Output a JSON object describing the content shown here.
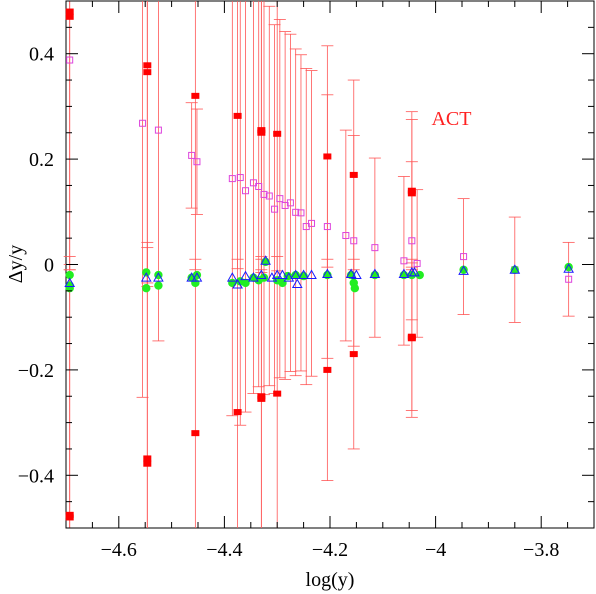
{
  "chart_data": {
    "type": "scatter",
    "title": "",
    "xlabel": "log(y)",
    "ylabel": "Δy/y",
    "xlim": [
      -4.7,
      -3.7
    ],
    "ylim": [
      -0.5,
      0.5
    ],
    "xticks": [
      -4.6,
      -4.4,
      -4.2,
      -4.0,
      -3.8
    ],
    "xtick_labels": [
      "−4.6",
      "−4.4",
      "−4.2",
      "−4",
      "−3.8"
    ],
    "yticks": [
      -0.4,
      -0.2,
      0.0,
      0.2,
      0.4
    ],
    "ytick_labels": [
      "−0.4",
      "−0.2",
      "0",
      "0.2",
      "0.4"
    ],
    "grid": false,
    "annotation": {
      "text": "ACT",
      "x": -3.97,
      "y": 0.265,
      "color": "#ff2020"
    },
    "colors": {
      "red": "#ff0000",
      "errorbar": "#ff5555",
      "magenta": "#dd44dd",
      "green": "#22ee22",
      "blue": "#1a1aff"
    },
    "red_errorbars": {
      "marker": "filled-square",
      "points": [
        {
          "x": -4.693,
          "y": 0.48,
          "err": 0.49
        },
        {
          "x": -4.693,
          "y": 0.47,
          "err": 0.48
        },
        {
          "x": -4.693,
          "y": -0.475,
          "err": 0.49
        },
        {
          "x": -4.693,
          "y": -0.48,
          "err": 0.48
        },
        {
          "x": -4.546,
          "y": 0.378,
          "err": 0.42
        },
        {
          "x": -4.546,
          "y": 0.365,
          "err": 0.4
        },
        {
          "x": -4.546,
          "y": -0.368,
          "err": 0.4
        },
        {
          "x": -4.546,
          "y": -0.378,
          "err": 0.42
        },
        {
          "x": -4.455,
          "y": 0.32,
          "err": 0.33
        },
        {
          "x": -4.455,
          "y": -0.32,
          "err": 0.33
        },
        {
          "x": -4.375,
          "y": 0.282,
          "err": 0.29
        },
        {
          "x": -4.375,
          "y": -0.28,
          "err": 0.29
        },
        {
          "x": -4.33,
          "y": 0.255,
          "err": 0.27
        },
        {
          "x": -4.33,
          "y": 0.25,
          "err": 0.26
        },
        {
          "x": -4.33,
          "y": -0.25,
          "err": 0.26
        },
        {
          "x": -4.33,
          "y": -0.255,
          "err": 0.27
        },
        {
          "x": -4.3,
          "y": 0.248,
          "err": 0.26
        },
        {
          "x": -4.3,
          "y": -0.245,
          "err": 0.26
        },
        {
          "x": -4.205,
          "y": 0.205,
          "err": 0.21
        },
        {
          "x": -4.205,
          "y": -0.2,
          "err": 0.21
        },
        {
          "x": -4.155,
          "y": 0.17,
          "err": 0.18
        },
        {
          "x": -4.155,
          "y": -0.17,
          "err": 0.18
        },
        {
          "x": -4.045,
          "y": 0.14,
          "err": 0.15
        },
        {
          "x": -4.045,
          "y": 0.135,
          "err": 0.14
        },
        {
          "x": -4.045,
          "y": -0.137,
          "err": 0.14
        },
        {
          "x": -4.045,
          "y": -0.14,
          "err": 0.15
        }
      ]
    },
    "magenta_errorbars": {
      "marker": "open-square",
      "points": [
        {
          "x": -4.693,
          "y": 0.388,
          "err": 0.0
        },
        {
          "x": -4.555,
          "y": 0.268,
          "err": 0.52
        },
        {
          "x": -4.525,
          "y": 0.255,
          "err": 0.4
        },
        {
          "x": -4.462,
          "y": 0.207,
          "err": 0.1
        },
        {
          "x": -4.452,
          "y": 0.195,
          "err": 0.1
        },
        {
          "x": -4.385,
          "y": 0.163,
          "err": 0.45
        },
        {
          "x": -4.37,
          "y": 0.165,
          "err": 0.47
        },
        {
          "x": -4.36,
          "y": 0.14,
          "err": 0.42
        },
        {
          "x": -4.345,
          "y": 0.155,
          "err": 0.4
        },
        {
          "x": -4.335,
          "y": 0.148,
          "err": 0.38
        },
        {
          "x": -4.325,
          "y": 0.133,
          "err": 0.38
        },
        {
          "x": -4.315,
          "y": 0.13,
          "err": 0.36
        },
        {
          "x": -4.305,
          "y": 0.105,
          "err": 0.35
        },
        {
          "x": -4.295,
          "y": 0.125,
          "err": 0.34
        },
        {
          "x": -4.285,
          "y": 0.112,
          "err": 0.33
        },
        {
          "x": -4.275,
          "y": 0.117,
          "err": 0.32
        },
        {
          "x": -4.265,
          "y": 0.099,
          "err": 0.31
        },
        {
          "x": -4.255,
          "y": 0.098,
          "err": 0.3
        },
        {
          "x": -4.245,
          "y": 0.072,
          "err": 0.3
        },
        {
          "x": -4.235,
          "y": 0.078,
          "err": 0.29
        },
        {
          "x": -4.205,
          "y": 0.072,
          "err": 0.25
        },
        {
          "x": -4.17,
          "y": 0.055,
          "err": 0.2
        },
        {
          "x": -4.155,
          "y": 0.045,
          "err": 0.2
        },
        {
          "x": -4.115,
          "y": 0.032,
          "err": 0.17
        },
        {
          "x": -4.06,
          "y": 0.007,
          "err": 0.16
        },
        {
          "x": -4.045,
          "y": 0.045,
          "err": 0.15
        },
        {
          "x": -4.035,
          "y": 0.002,
          "err": 0.14
        },
        {
          "x": -3.947,
          "y": 0.015,
          "err": 0.11
        },
        {
          "x": -3.85,
          "y": -0.01,
          "err": 0.1
        },
        {
          "x": -3.748,
          "y": -0.028,
          "err": 0.07
        }
      ]
    },
    "green_points": {
      "marker": "filled-circle",
      "points": [
        {
          "x": -4.693,
          "y": -0.02
        },
        {
          "x": -4.693,
          "y": -0.04
        },
        {
          "x": -4.693,
          "y": -0.045
        },
        {
          "x": -4.548,
          "y": -0.015
        },
        {
          "x": -4.548,
          "y": -0.045
        },
        {
          "x": -4.525,
          "y": -0.02
        },
        {
          "x": -4.525,
          "y": -0.04
        },
        {
          "x": -4.462,
          "y": -0.025
        },
        {
          "x": -4.455,
          "y": -0.035
        },
        {
          "x": -4.452,
          "y": -0.02
        },
        {
          "x": -4.385,
          "y": -0.035
        },
        {
          "x": -4.37,
          "y": -0.032
        },
        {
          "x": -4.36,
          "y": -0.035
        },
        {
          "x": -4.345,
          "y": -0.025
        },
        {
          "x": -4.335,
          "y": -0.03
        },
        {
          "x": -4.325,
          "y": -0.025
        },
        {
          "x": -4.322,
          "y": 0.005
        },
        {
          "x": -4.3,
          "y": -0.03
        },
        {
          "x": -4.29,
          "y": -0.035
        },
        {
          "x": -4.28,
          "y": -0.022
        },
        {
          "x": -4.265,
          "y": -0.02
        },
        {
          "x": -4.25,
          "y": -0.022
        },
        {
          "x": -4.205,
          "y": -0.02
        },
        {
          "x": -4.16,
          "y": -0.02
        },
        {
          "x": -4.155,
          "y": -0.035
        },
        {
          "x": -4.153,
          "y": -0.045
        },
        {
          "x": -4.115,
          "y": -0.02
        },
        {
          "x": -4.06,
          "y": -0.02
        },
        {
          "x": -4.045,
          "y": -0.02
        },
        {
          "x": -4.03,
          "y": -0.02
        },
        {
          "x": -3.947,
          "y": -0.01
        },
        {
          "x": -3.85,
          "y": -0.01
        },
        {
          "x": -3.748,
          "y": -0.005
        }
      ]
    },
    "blue_points": {
      "marker": "open-triangle",
      "points": [
        {
          "x": -4.693,
          "y": -0.035
        },
        {
          "x": -4.548,
          "y": -0.025
        },
        {
          "x": -4.525,
          "y": -0.025
        },
        {
          "x": -4.462,
          "y": -0.025
        },
        {
          "x": -4.452,
          "y": -0.025
        },
        {
          "x": -4.385,
          "y": -0.025
        },
        {
          "x": -4.375,
          "y": -0.038
        },
        {
          "x": -4.36,
          "y": -0.022
        },
        {
          "x": -4.345,
          "y": -0.025
        },
        {
          "x": -4.33,
          "y": -0.02
        },
        {
          "x": -4.322,
          "y": 0.007
        },
        {
          "x": -4.31,
          "y": -0.025
        },
        {
          "x": -4.3,
          "y": -0.02
        },
        {
          "x": -4.29,
          "y": -0.02
        },
        {
          "x": -4.278,
          "y": -0.025
        },
        {
          "x": -4.265,
          "y": -0.02
        },
        {
          "x": -4.262,
          "y": -0.037
        },
        {
          "x": -4.25,
          "y": -0.02
        },
        {
          "x": -4.235,
          "y": -0.02
        },
        {
          "x": -4.205,
          "y": -0.018
        },
        {
          "x": -4.16,
          "y": -0.018
        },
        {
          "x": -4.15,
          "y": -0.02
        },
        {
          "x": -4.115,
          "y": -0.018
        },
        {
          "x": -4.06,
          "y": -0.018
        },
        {
          "x": -4.045,
          "y": -0.015
        },
        {
          "x": -4.04,
          "y": -0.015
        },
        {
          "x": -3.947,
          "y": -0.012
        },
        {
          "x": -3.85,
          "y": -0.01
        },
        {
          "x": -3.748,
          "y": -0.008
        }
      ]
    }
  }
}
